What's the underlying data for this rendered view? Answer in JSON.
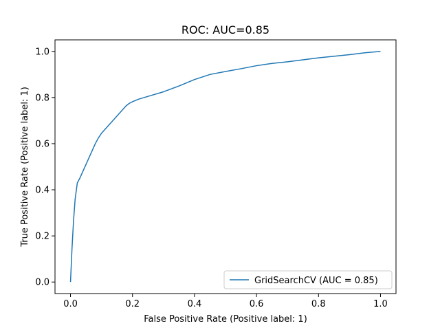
{
  "chart_data": {
    "type": "line",
    "title": "ROC: AUC=0.85",
    "xlabel": "False Positive Rate (Positive label: 1)",
    "ylabel": "True Positive Rate (Positive label: 1)",
    "xlim": [
      -0.05,
      1.05
    ],
    "ylim": [
      -0.05,
      1.05
    ],
    "xticks": [
      0.0,
      0.2,
      0.4,
      0.6,
      0.8,
      1.0
    ],
    "yticks": [
      0.0,
      0.2,
      0.4,
      0.6,
      0.8,
      1.0
    ],
    "xtick_labels": [
      "0.0",
      "0.2",
      "0.4",
      "0.6",
      "0.8",
      "1.0"
    ],
    "ytick_labels": [
      "0.0",
      "0.2",
      "0.4",
      "0.6",
      "0.8",
      "1.0"
    ],
    "grid": false,
    "legend_position": "lower-right",
    "series": [
      {
        "name": "GridSearchCV (AUC = 0.85)",
        "color": "#1f77b4",
        "x": [
          0.0,
          0.005,
          0.01,
          0.015,
          0.022,
          0.03,
          0.04,
          0.05,
          0.06,
          0.07,
          0.08,
          0.09,
          0.1,
          0.12,
          0.14,
          0.16,
          0.18,
          0.19,
          0.2,
          0.22,
          0.25,
          0.3,
          0.35,
          0.4,
          0.45,
          0.5,
          0.55,
          0.6,
          0.65,
          0.7,
          0.8,
          0.9,
          0.95,
          1.0
        ],
        "y": [
          0.0,
          0.15,
          0.27,
          0.36,
          0.43,
          0.45,
          0.48,
          0.51,
          0.54,
          0.57,
          0.6,
          0.625,
          0.645,
          0.675,
          0.705,
          0.735,
          0.765,
          0.775,
          0.782,
          0.793,
          0.805,
          0.825,
          0.85,
          0.878,
          0.9,
          0.913,
          0.925,
          0.938,
          0.948,
          0.955,
          0.972,
          0.986,
          0.994,
          1.0
        ]
      }
    ]
  }
}
